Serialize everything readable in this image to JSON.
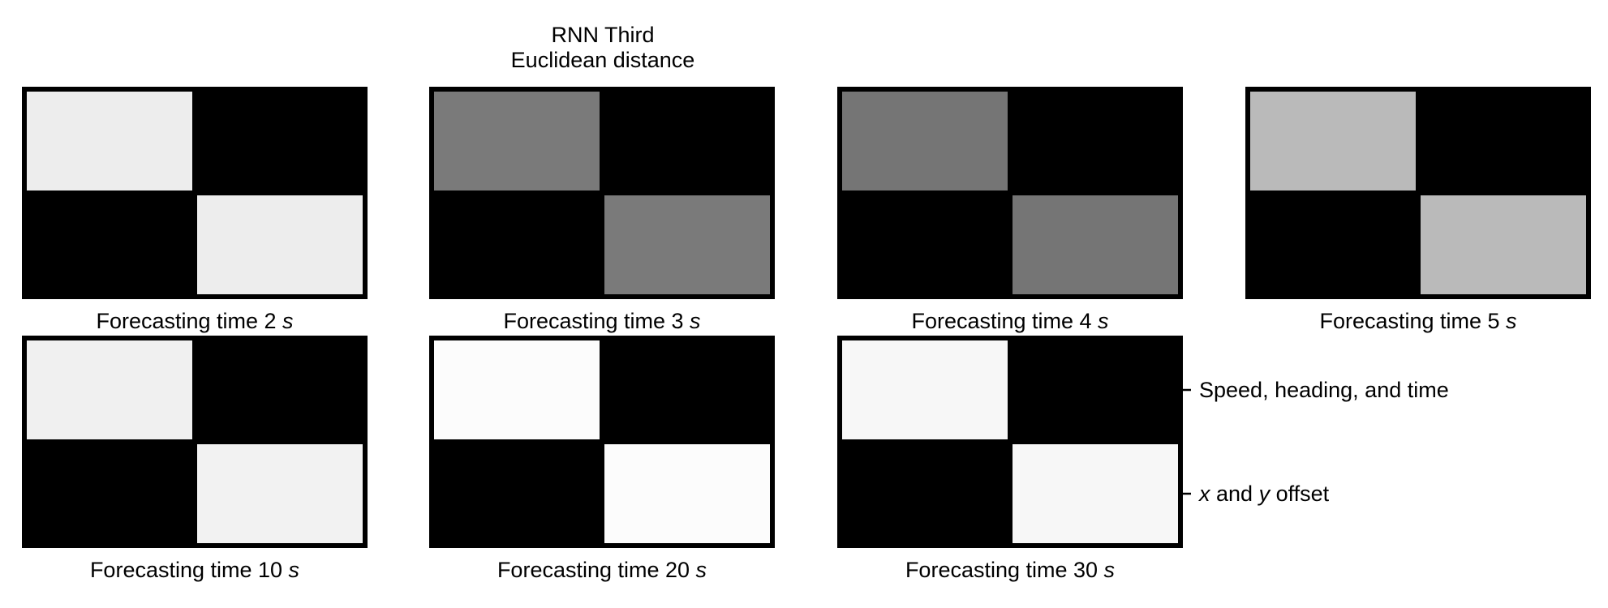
{
  "chart_data": {
    "type": "heatmap",
    "title_lines": [
      "RNN Third",
      "Euclidean distance"
    ],
    "colormap": "grayscale (black = 0, white = 1)",
    "row_labels": [
      "Speed, heading, and time",
      "x and y offset"
    ],
    "row_labels_italic_parts": [
      [],
      [
        "x",
        "y"
      ]
    ],
    "panels": [
      {
        "label_prefix": "Forecasting time 2 ",
        "label_unit": "s",
        "matrix": [
          [
            0.93,
            0.0
          ],
          [
            0.0,
            0.93
          ]
        ]
      },
      {
        "label_prefix": "Forecasting time 3 ",
        "label_unit": "s",
        "matrix": [
          [
            0.48,
            0.0
          ],
          [
            0.0,
            0.48
          ]
        ]
      },
      {
        "label_prefix": "Forecasting time 4 ",
        "label_unit": "s",
        "matrix": [
          [
            0.46,
            0.0
          ],
          [
            0.0,
            0.46
          ]
        ]
      },
      {
        "label_prefix": "Forecasting time 5 ",
        "label_unit": "s",
        "matrix": [
          [
            0.73,
            0.0
          ],
          [
            0.0,
            0.73
          ]
        ]
      },
      {
        "label_prefix": "Forecasting time 10 ",
        "label_unit": "s",
        "matrix": [
          [
            0.94,
            0.0
          ],
          [
            0.0,
            0.95
          ]
        ]
      },
      {
        "label_prefix": "Forecasting time 20 ",
        "label_unit": "s",
        "matrix": [
          [
            0.99,
            0.0
          ],
          [
            0.0,
            0.99
          ]
        ]
      },
      {
        "label_prefix": "Forecasting time 30 ",
        "label_unit": "s",
        "matrix": [
          [
            0.97,
            0.0
          ],
          [
            0.0,
            0.97
          ]
        ]
      }
    ]
  }
}
